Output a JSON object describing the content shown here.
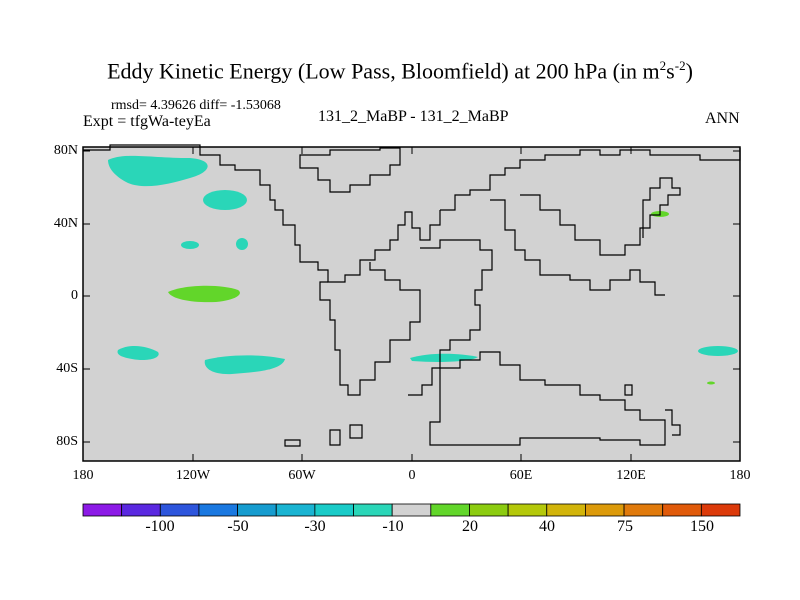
{
  "title": {
    "main": "Eddy Kinetic Energy (Low Pass, Bloomfield) at 200 hPa (in m",
    "sup1": "2",
    "mid": "s",
    "sup2": "-2",
    "end": ")"
  },
  "stats": "rmsd= 4.39626 diff= -1.53068",
  "experiment": "Expt = tfgWa-teyEa",
  "case": "131_2_MaBP - 131_2_MaBP",
  "season": "ANN",
  "lat_ticks": [
    "80N",
    "40N",
    "0",
    "40S",
    "80S"
  ],
  "lon_ticks": [
    "180",
    "120W",
    "60W",
    "0",
    "60E",
    "120E",
    "180"
  ],
  "colorbar": {
    "colors": [
      "#8c1ae6",
      "#5a28e0",
      "#2d55dc",
      "#1a78e0",
      "#169ccf",
      "#1ab4d2",
      "#1acbc8",
      "#2ad6b8",
      "#d2d2d2",
      "#62d62a",
      "#8ccc10",
      "#b4c80a",
      "#d2b40a",
      "#dc9a0a",
      "#e07a0c",
      "#e05a0a",
      "#dc3a0a"
    ],
    "labels": [
      "-100",
      "-50",
      "-30",
      "-10",
      "20",
      "40",
      "75",
      "150"
    ]
  }
}
